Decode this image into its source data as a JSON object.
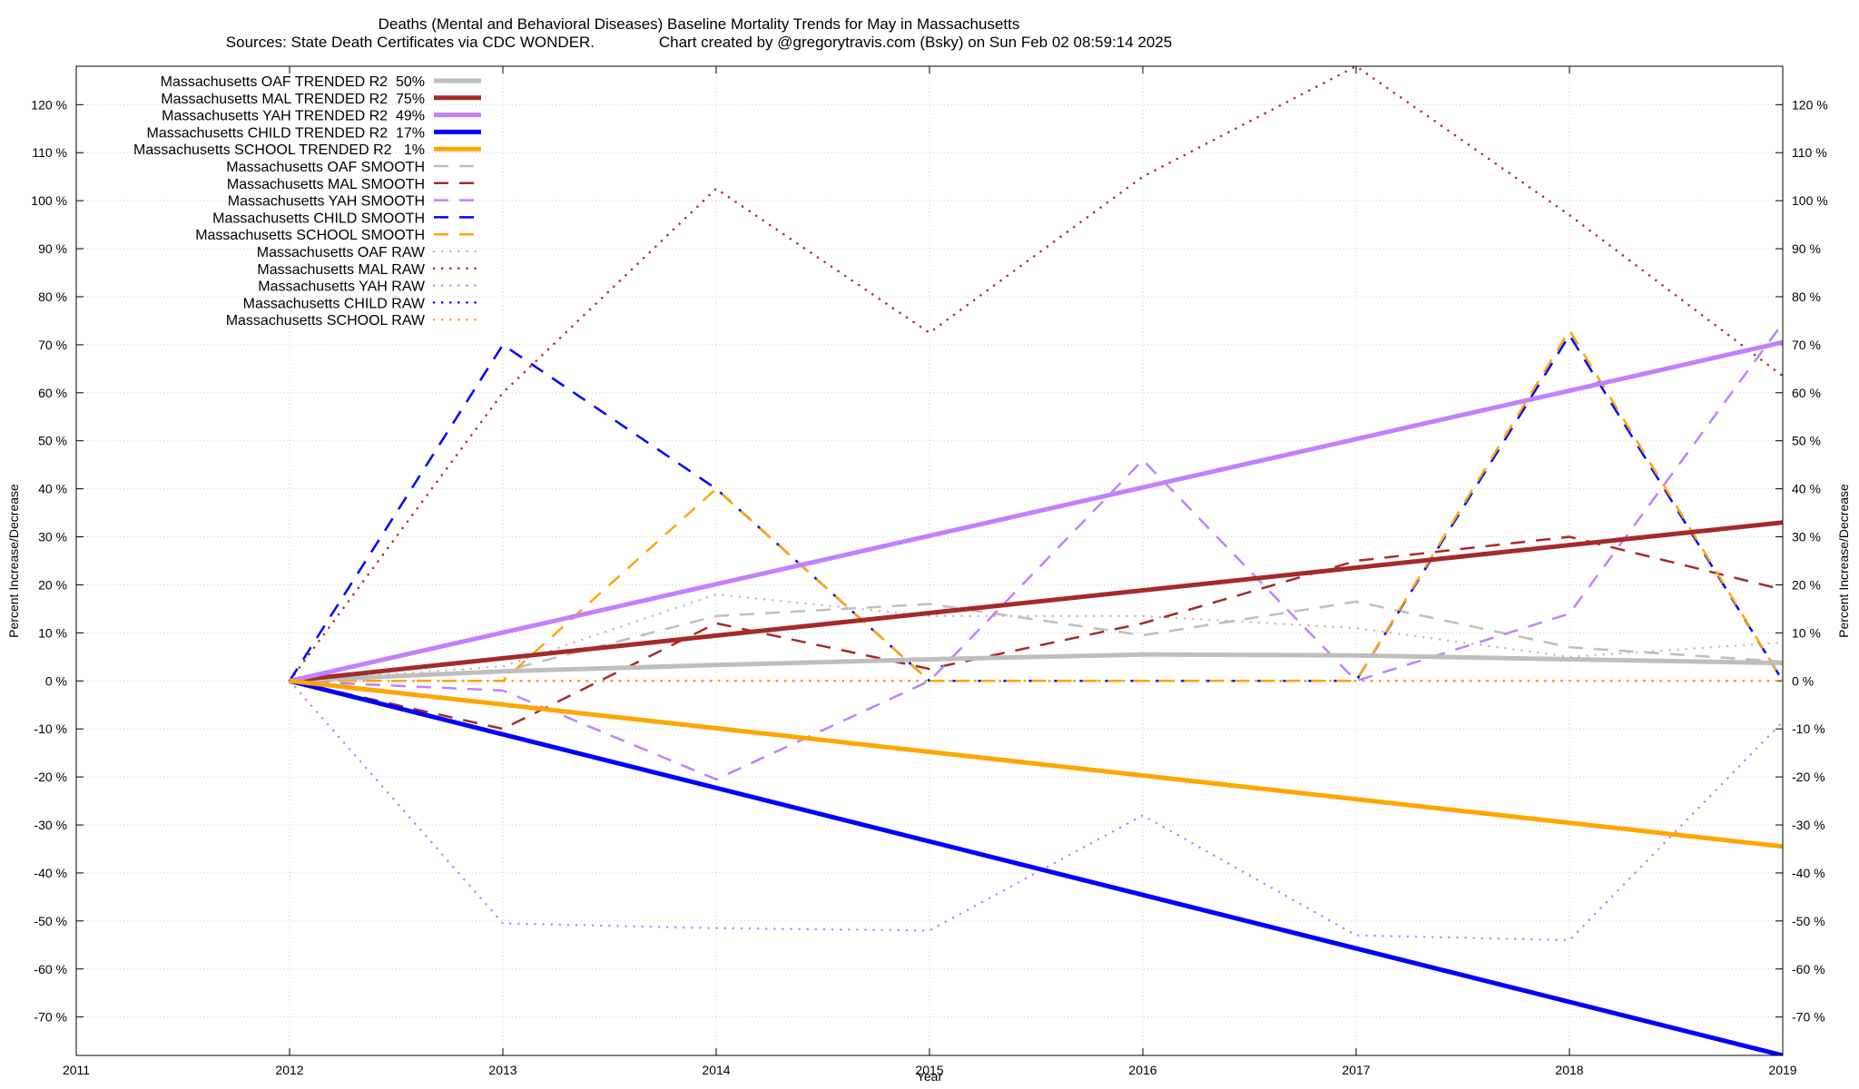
{
  "chart_data": {
    "type": "line",
    "title": "Deaths (Mental and Behavioral Diseases)  Baseline Mortality Trends for May in Massachusetts",
    "subtitle": "Sources: State Death Certificates via CDC WONDER.               Chart created by @gregorytravis.com (Bsky) on Sun Feb 02 08:59:14 2025",
    "xlabel": "Year",
    "ylabel": "Percent Increase/Decrease",
    "y2label": "Percent Increase/Decrease",
    "xlim": [
      2011,
      2019
    ],
    "ylim": [
      -78,
      128
    ],
    "x_ticks": [
      2011,
      2012,
      2013,
      2014,
      2015,
      2016,
      2017,
      2018,
      2019
    ],
    "y_ticks": [
      -70,
      -60,
      -50,
      -40,
      -30,
      -20,
      -10,
      0,
      10,
      20,
      30,
      40,
      50,
      60,
      70,
      80,
      90,
      100,
      110,
      120
    ],
    "y_tick_suffix": " %",
    "grid": true,
    "legend_position": "top-left",
    "series": [
      {
        "name": "Massachusetts OAF TRENDED R2  50%",
        "style": "solid",
        "color": "#bebebe",
        "x": [
          2012,
          2013,
          2014,
          2015,
          2016,
          2017,
          2018,
          2019
        ],
        "values": [
          0,
          2,
          3.3,
          4.5,
          5.5,
          5.3,
          4.5,
          3.7
        ]
      },
      {
        "name": "Massachusetts MAL TRENDED R2  75%",
        "style": "solid",
        "color": "#a52a2a",
        "x": [
          2012,
          2019
        ],
        "values": [
          0,
          33
        ]
      },
      {
        "name": "Massachusetts YAH TRENDED R2  49%",
        "style": "solid",
        "color": "#c080ff",
        "x": [
          2012,
          2019
        ],
        "values": [
          0,
          70.5
        ]
      },
      {
        "name": "Massachusetts CHILD TRENDED R2  17%",
        "style": "solid",
        "color": "#0000ff",
        "x": [
          2012,
          2019
        ],
        "values": [
          0,
          -78
        ]
      },
      {
        "name": "Massachusetts SCHOOL TRENDED R2   1%",
        "style": "solid",
        "color": "#ffa500",
        "x": [
          2012,
          2019
        ],
        "values": [
          0,
          -34.5
        ]
      },
      {
        "name": "Massachusetts OAF SMOOTH",
        "style": "dashed",
        "color": "#bebebe",
        "x": [
          2012,
          2013,
          2014,
          2015,
          2016,
          2017,
          2018,
          2019
        ],
        "values": [
          0,
          2,
          13.5,
          16,
          9.5,
          16.5,
          7,
          4
        ]
      },
      {
        "name": "Massachusetts MAL SMOOTH",
        "style": "dashed",
        "color": "#a52a2a",
        "x": [
          2012,
          2013,
          2014,
          2015,
          2016,
          2017,
          2018,
          2019
        ],
        "values": [
          0,
          -10,
          12,
          2.5,
          12,
          25,
          30,
          19
        ]
      },
      {
        "name": "Massachusetts YAH SMOOTH",
        "style": "dashed",
        "color": "#c080ff",
        "x": [
          2012,
          2013,
          2014,
          2015,
          2016,
          2017,
          2018,
          2019
        ],
        "values": [
          0,
          -2,
          -20.5,
          0,
          46,
          0,
          14,
          74.5
        ]
      },
      {
        "name": "Massachusetts CHILD SMOOTH",
        "style": "dashed",
        "color": "#0000ff",
        "x": [
          2012,
          2013,
          2014,
          2015,
          2016,
          2017,
          2018,
          2019
        ],
        "values": [
          0,
          70,
          40,
          0,
          0,
          0,
          72,
          0
        ]
      },
      {
        "name": "Massachusetts SCHOOL SMOOTH",
        "style": "dashed",
        "color": "#ffa500",
        "x": [
          2012,
          2013,
          2014,
          2015,
          2016,
          2017,
          2018,
          2019
        ],
        "values": [
          0,
          0,
          40,
          0,
          0,
          0,
          73,
          0
        ]
      },
      {
        "name": "Massachusetts OAF RAW",
        "style": "dotted",
        "color": "#bebebe",
        "x": [
          2012,
          2013,
          2014,
          2015,
          2016,
          2017,
          2018,
          2019
        ],
        "values": [
          0,
          3,
          18,
          13.5,
          13.5,
          11,
          5,
          8
        ]
      },
      {
        "name": "Massachusetts MAL RAW",
        "style": "dotted",
        "color": "#a52a2a",
        "x": [
          2012,
          2013,
          2014,
          2015,
          2016,
          2017,
          2018,
          2019
        ],
        "values": [
          0,
          60,
          102.5,
          72.5,
          105,
          128,
          97,
          63.5
        ]
      },
      {
        "name": "Massachusetts YAH RAW",
        "style": "dotted",
        "color": "#c080ff",
        "x": [
          2012,
          2013,
          2014,
          2015,
          2016,
          2017,
          2018,
          2019
        ],
        "values": [
          0,
          -50.5,
          -51.5,
          -52,
          -28,
          -53,
          -54,
          -8.5
        ]
      },
      {
        "name": "Massachusetts CHILD RAW",
        "style": "dotted",
        "color": "#0000ff",
        "x": [
          2012,
          2013,
          2014,
          2015,
          2016,
          2017,
          2018,
          2019
        ],
        "values": [
          0,
          0,
          0,
          0,
          0,
          0,
          0,
          0
        ]
      },
      {
        "name": "Massachusetts SCHOOL RAW",
        "style": "dotted",
        "color": "#ffa500",
        "x": [
          2012,
          2013,
          2014,
          2015,
          2016,
          2017,
          2018,
          2019
        ],
        "values": [
          0,
          0,
          0,
          0,
          0,
          0,
          0,
          0
        ]
      }
    ]
  }
}
